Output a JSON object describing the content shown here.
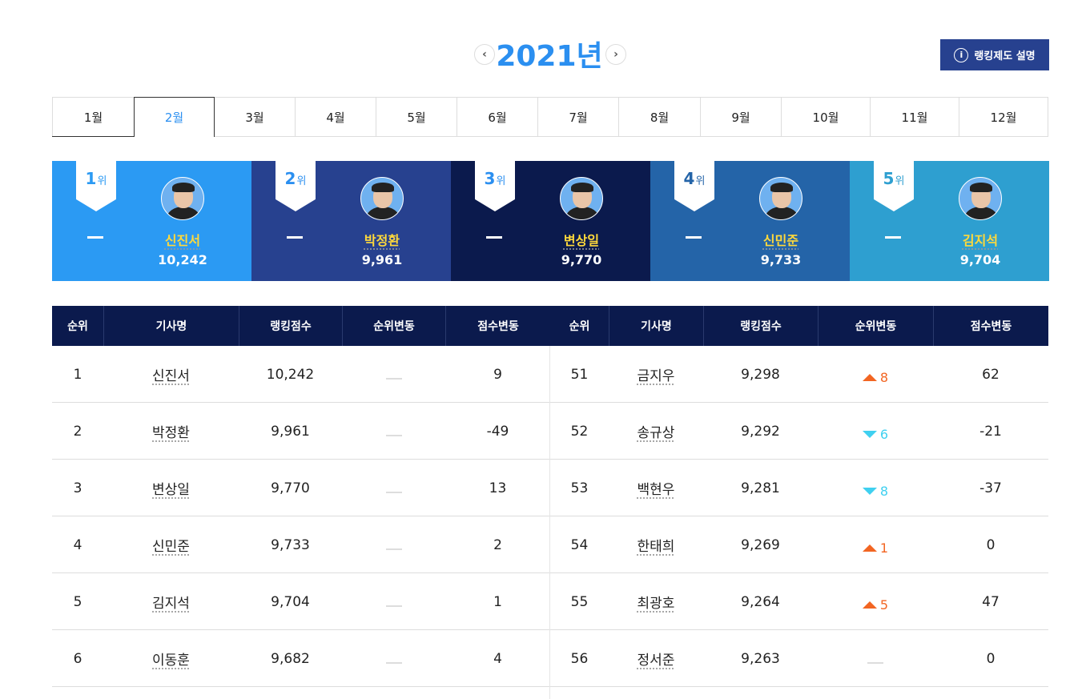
{
  "header": {
    "year": "2021년",
    "info_button": "랭킹제도 설명"
  },
  "months": {
    "tabs": [
      "1월",
      "2월",
      "3월",
      "4월",
      "5월",
      "6월",
      "7월",
      "8월",
      "9월",
      "10월",
      "11월",
      "12월"
    ],
    "active": 1
  },
  "top5": {
    "rank_suffix": "위",
    "cards": [
      {
        "rank": 1,
        "name": "신진서",
        "score": "10,242",
        "color": "#2b9af3"
      },
      {
        "rank": 2,
        "name": "박정환",
        "score": "9,961",
        "color": "#27418f"
      },
      {
        "rank": 3,
        "name": "변상일",
        "score": "9,770",
        "color": "#0b1a4d"
      },
      {
        "rank": 4,
        "name": "신민준",
        "score": "9,733",
        "color": "#2464a8"
      },
      {
        "rank": 5,
        "name": "김지석",
        "score": "9,704",
        "color": "#2e9fd0"
      }
    ]
  },
  "table": {
    "columns": [
      "순위",
      "기사명",
      "랭킹점수",
      "순위변동",
      "점수변동"
    ],
    "left": [
      {
        "rank": 1,
        "name": "신진서",
        "score": "10,242",
        "rank_change": null,
        "score_change": 9
      },
      {
        "rank": 2,
        "name": "박정환",
        "score": "9,961",
        "rank_change": null,
        "score_change": -49
      },
      {
        "rank": 3,
        "name": "변상일",
        "score": "9,770",
        "rank_change": null,
        "score_change": 13
      },
      {
        "rank": 4,
        "name": "신민준",
        "score": "9,733",
        "rank_change": null,
        "score_change": 2
      },
      {
        "rank": 5,
        "name": "김지석",
        "score": "9,704",
        "rank_change": null,
        "score_change": 1
      },
      {
        "rank": 6,
        "name": "이동훈",
        "score": "9,682",
        "rank_change": null,
        "score_change": 4
      }
    ],
    "right": [
      {
        "rank": 51,
        "name": "금지우",
        "score": "9,298",
        "rank_change": {
          "direction": "up",
          "value": 8
        },
        "score_change": 62
      },
      {
        "rank": 52,
        "name": "송규상",
        "score": "9,292",
        "rank_change": {
          "direction": "down",
          "value": 6
        },
        "score_change": -21
      },
      {
        "rank": 53,
        "name": "백현우",
        "score": "9,281",
        "rank_change": {
          "direction": "down",
          "value": 8
        },
        "score_change": -37
      },
      {
        "rank": 54,
        "name": "한태희",
        "score": "9,269",
        "rank_change": {
          "direction": "up",
          "value": 1
        },
        "score_change": 0
      },
      {
        "rank": 55,
        "name": "최광호",
        "score": "9,264",
        "rank_change": {
          "direction": "up",
          "value": 5
        },
        "score_change": 47
      },
      {
        "rank": 56,
        "name": "정서준",
        "score": "9,263",
        "rank_change": null,
        "score_change": 0
      }
    ]
  }
}
